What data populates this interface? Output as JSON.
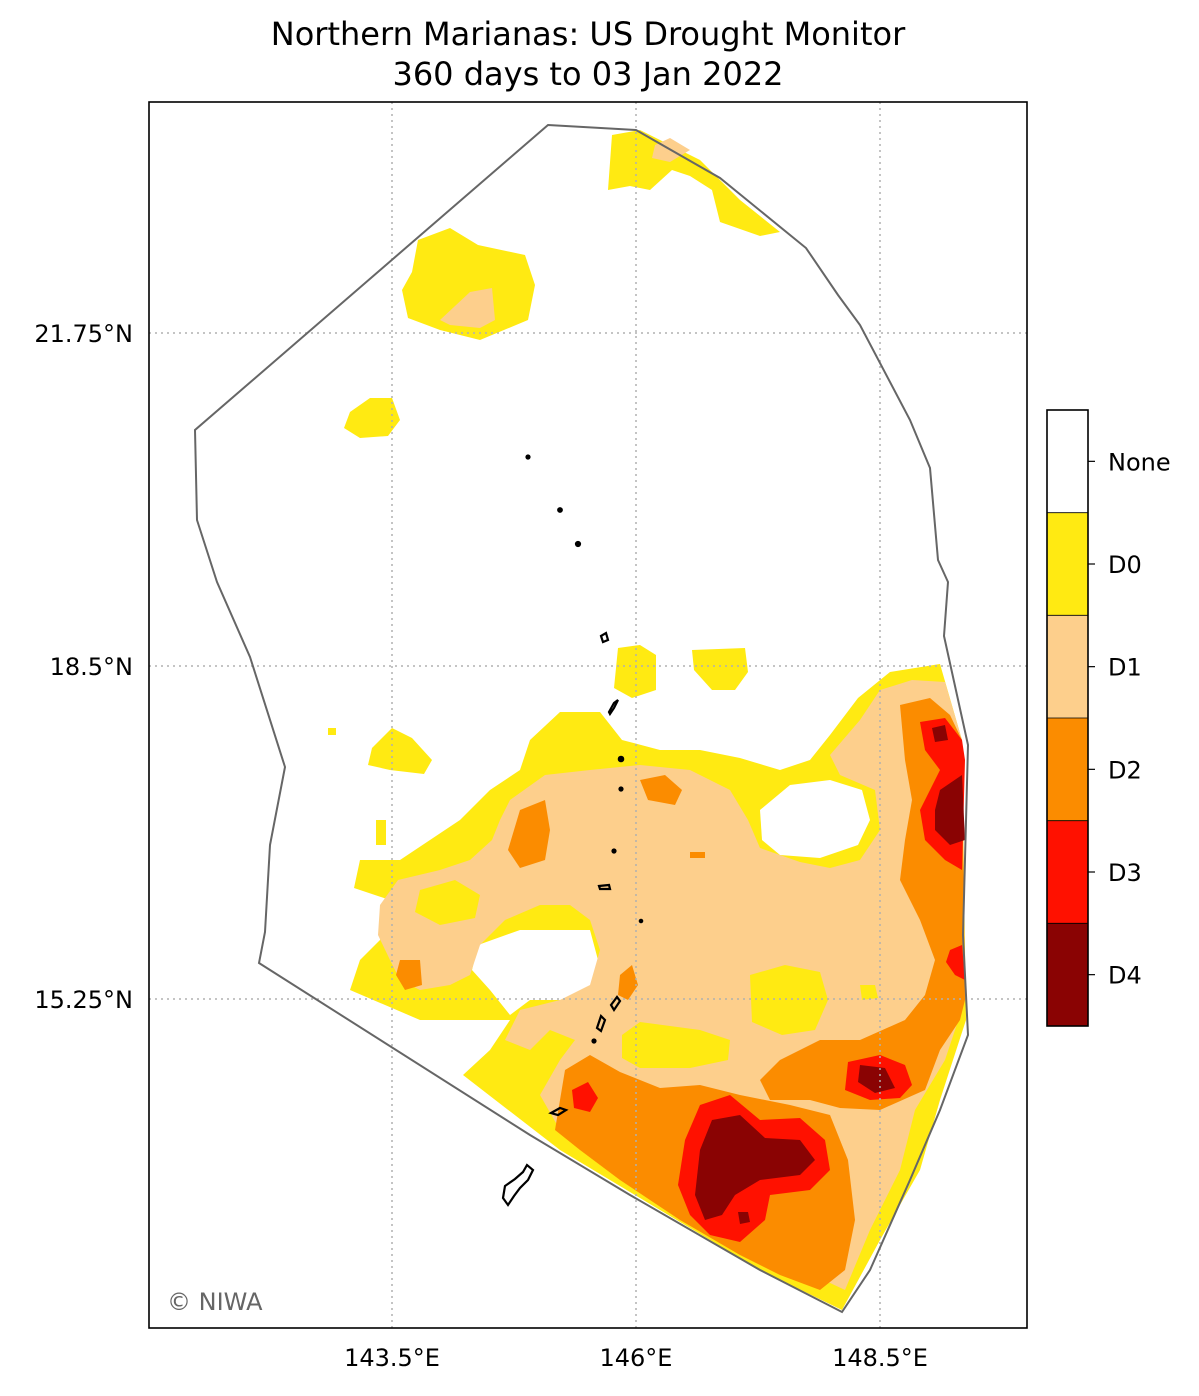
{
  "chart_data": {
    "type": "contour-map",
    "title_line1": "Northern Marianas: US Drought Monitor",
    "title_line2": "360 days to 03 Jan 2022",
    "x_ticks": [
      {
        "value": 143.5,
        "label": "143.5°E"
      },
      {
        "value": 146.0,
        "label": "146°E"
      },
      {
        "value": 148.5,
        "label": "148.5°E"
      }
    ],
    "y_ticks": [
      {
        "value": 21.75,
        "label": "21.75°N"
      },
      {
        "value": 18.5,
        "label": "18.5°N"
      },
      {
        "value": 15.25,
        "label": "15.25°N"
      }
    ],
    "grid": true,
    "legend": {
      "placement": "right",
      "categories": [
        {
          "label": "None",
          "color": "#ffffff"
        },
        {
          "label": "D0",
          "color": "#ffea12"
        },
        {
          "label": "D1",
          "color": "#fdcf8c"
        },
        {
          "label": "D2",
          "color": "#fb8c00"
        },
        {
          "label": "D3",
          "color": "#ff1100"
        },
        {
          "label": "D4",
          "color": "#8a0303"
        }
      ]
    },
    "credit": "© NIWA"
  }
}
